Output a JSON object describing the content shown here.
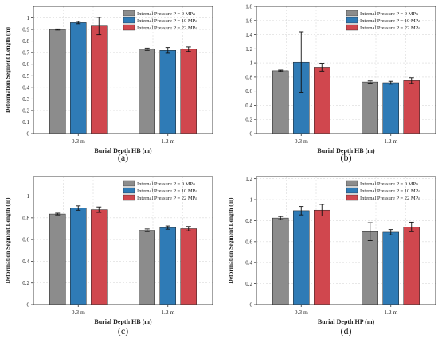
{
  "colors": {
    "series": [
      "#8c8c8c",
      "#2f7bb6",
      "#d0474e"
    ],
    "grid": "#d9d9d9",
    "axis": "#333333"
  },
  "chart_data": [
    {
      "panel_label": "(a)",
      "type": "bar",
      "xlabel": "Burial Depth HB (m)",
      "ylabel": "Deformation Segment Length (m)",
      "categories": [
        "0.3 m",
        "1.2 m"
      ],
      "ylim": [
        0,
        1.1
      ],
      "yticks": [
        0,
        0.1,
        0.2,
        0.3,
        0.4,
        0.5,
        0.6,
        0.7,
        0.8,
        0.9,
        1
      ],
      "legend_position": "top-right",
      "grid": true,
      "series": [
        {
          "name": "Internal Pressure P = 0 MPa",
          "values": [
            0.9,
            0.73
          ],
          "errors": [
            0.005,
            0.01
          ]
        },
        {
          "name": "Internal Pressure P = 10 MPa",
          "values": [
            0.96,
            0.72
          ],
          "errors": [
            0.01,
            0.025
          ]
        },
        {
          "name": "Internal Pressure P = 22 MPa",
          "values": [
            0.93,
            0.73
          ],
          "errors": [
            0.075,
            0.02
          ]
        }
      ]
    },
    {
      "panel_label": "(b)",
      "type": "bar",
      "xlabel": "Burial Depth HB (m)",
      "ylabel": "",
      "categories": [
        "0.3 m",
        "1.2 m"
      ],
      "ylim": [
        0,
        1.8
      ],
      "yticks": [
        0,
        0.2,
        0.4,
        0.6,
        0.8,
        1,
        1.2,
        1.4,
        1.6,
        1.8
      ],
      "legend_position": "top-right",
      "grid": true,
      "series": [
        {
          "name": "Internal Pressure P = 0 MPa",
          "values": [
            0.89,
            0.73
          ],
          "errors": [
            0.01,
            0.015
          ]
        },
        {
          "name": "Internal Pressure P = 10 MPa",
          "values": [
            1.01,
            0.72
          ],
          "errors": [
            0.43,
            0.02
          ]
        },
        {
          "name": "Internal Pressure P = 22 MPa",
          "values": [
            0.94,
            0.75
          ],
          "errors": [
            0.055,
            0.04
          ]
        }
      ]
    },
    {
      "panel_label": "(c)",
      "type": "bar",
      "xlabel": "Burial Depth HB (m)",
      "ylabel": "Deformation Segment Length (m)",
      "categories": [
        "0.3 m",
        "1.2 m"
      ],
      "ylim": [
        0,
        1.18
      ],
      "yticks": [
        0,
        0.2,
        0.4,
        0.6,
        0.8,
        1
      ],
      "legend_position": "top-right",
      "grid": true,
      "series": [
        {
          "name": "Internal Pressure P = 0 MPa",
          "values": [
            0.835,
            0.685
          ],
          "errors": [
            0.008,
            0.012
          ]
        },
        {
          "name": "Internal Pressure P = 10 MPa",
          "values": [
            0.89,
            0.71
          ],
          "errors": [
            0.02,
            0.015
          ]
        },
        {
          "name": "Internal Pressure P = 22 MPa",
          "values": [
            0.875,
            0.7
          ],
          "errors": [
            0.025,
            0.02
          ]
        }
      ]
    },
    {
      "panel_label": "(d)",
      "type": "bar",
      "xlabel": "Burial Depth HP (m)",
      "ylabel": "Deformation Segment Length (m)",
      "categories": [
        "0.3 m",
        "1.2 m"
      ],
      "ylim": [
        0,
        1.22
      ],
      "yticks": [
        0,
        0.2,
        0.4,
        0.6,
        0.8,
        1,
        1.2
      ],
      "legend_position": "top-right",
      "grid": true,
      "series": [
        {
          "name": "Internal Pressure P = 0 MPa",
          "values": [
            0.825,
            0.695
          ],
          "errors": [
            0.015,
            0.085
          ]
        },
        {
          "name": "Internal Pressure P = 10 MPa",
          "values": [
            0.895,
            0.69
          ],
          "errors": [
            0.04,
            0.025
          ]
        },
        {
          "name": "Internal Pressure P = 22 MPa",
          "values": [
            0.9,
            0.74
          ],
          "errors": [
            0.055,
            0.045
          ]
        }
      ]
    }
  ]
}
